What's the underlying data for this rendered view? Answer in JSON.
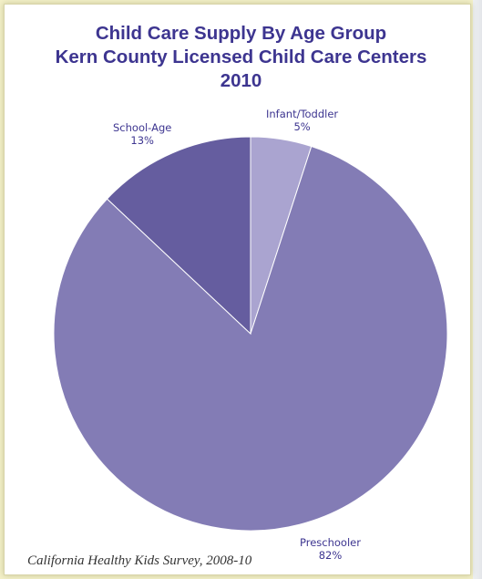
{
  "chart_data": {
    "type": "pie",
    "title_lines": [
      "Child Care Supply By Age Group",
      "Kern County Licensed Child Care Centers",
      "2010"
    ],
    "slices": [
      {
        "label": "Infant/Toddler",
        "value": 5,
        "value_label": "5%",
        "color": "#aaa4d0"
      },
      {
        "label": "Preschooler",
        "value": 82,
        "value_label": "82%",
        "color": "#837cb5"
      },
      {
        "label": "School-Age",
        "value": 13,
        "value_label": "13%",
        "color": "#655d9f"
      }
    ]
  },
  "source": "California Healthy Kids Survey, 2008-10"
}
